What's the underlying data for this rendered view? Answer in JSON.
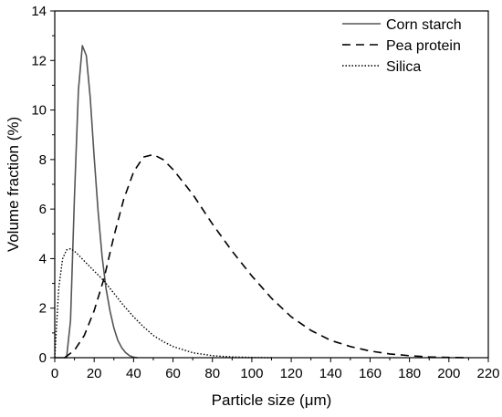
{
  "chart_data": {
    "type": "line",
    "xlabel": "Particle size (μm)",
    "ylabel": "Volume fraction (%)",
    "xlim": [
      0,
      220
    ],
    "ylim": [
      0,
      14
    ],
    "xticks": [
      0,
      20,
      40,
      60,
      80,
      100,
      120,
      140,
      160,
      180,
      200,
      220
    ],
    "yticks": [
      0,
      2,
      4,
      6,
      8,
      10,
      12,
      14
    ],
    "legend_position": "top-right",
    "grid": false,
    "series": [
      {
        "name": "Corn starch",
        "style": "solid",
        "color": "#555555",
        "x": [
          0,
          4,
          6,
          8,
          10,
          12,
          14,
          16,
          18,
          20,
          22,
          24,
          26,
          28,
          30,
          32,
          34,
          36,
          38,
          40,
          42
        ],
        "y": [
          0,
          0,
          0,
          1.5,
          6.5,
          10.8,
          12.6,
          12.2,
          10.5,
          8.1,
          5.9,
          4.1,
          2.8,
          1.9,
          1.2,
          0.7,
          0.4,
          0.2,
          0.08,
          0.02,
          0
        ]
      },
      {
        "name": "Pea protein",
        "style": "dashed",
        "color": "#000000",
        "x": [
          5,
          10,
          15,
          20,
          25,
          30,
          35,
          40,
          45,
          50,
          55,
          60,
          70,
          80,
          90,
          100,
          110,
          120,
          130,
          140,
          150,
          160,
          170,
          180,
          190,
          200,
          210
        ],
        "y": [
          0,
          0.3,
          0.9,
          1.9,
          3.2,
          4.9,
          6.4,
          7.5,
          8.1,
          8.2,
          8.0,
          7.6,
          6.6,
          5.4,
          4.3,
          3.3,
          2.4,
          1.65,
          1.1,
          0.7,
          0.45,
          0.27,
          0.15,
          0.08,
          0.03,
          0.01,
          0
        ]
      },
      {
        "name": "Silica",
        "style": "dotted",
        "color": "#000000",
        "x": [
          0,
          2,
          4,
          6,
          8,
          10,
          12,
          15,
          20,
          25,
          30,
          35,
          40,
          45,
          50,
          55,
          60,
          70,
          80,
          90,
          100,
          110
        ],
        "y": [
          0,
          2.8,
          4.0,
          4.35,
          4.4,
          4.3,
          4.15,
          3.9,
          3.5,
          3.1,
          2.6,
          2.1,
          1.65,
          1.25,
          0.9,
          0.65,
          0.45,
          0.2,
          0.08,
          0.03,
          0.01,
          0
        ]
      }
    ]
  }
}
